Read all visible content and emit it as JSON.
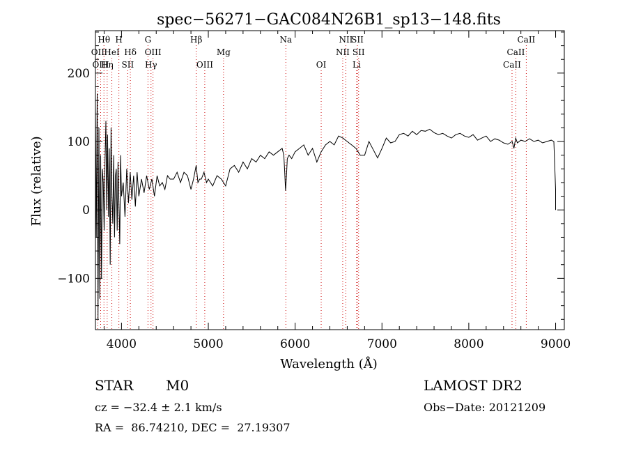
{
  "chart_data": {
    "type": "line",
    "title": "spec−56271−GAC084N26B1_sp13−148.fits",
    "xlabel": "Wavelength (Å)",
    "ylabel": "Flux (relative)",
    "xlim": [
      3700,
      9100
    ],
    "ylim": [
      -175,
      262
    ],
    "xticks": [
      4000,
      5000,
      6000,
      7000,
      8000,
      9000
    ],
    "yticks": [
      -100,
      0,
      100,
      200
    ],
    "xtick_labels": [
      "4000",
      "5000",
      "6000",
      "7000",
      "8000",
      "9000"
    ],
    "ytick_labels": [
      "−100",
      "0",
      "100",
      "200"
    ],
    "grid": false,
    "series": [
      {
        "x": [
          3700,
          3710,
          3720,
          3730,
          3740,
          3750,
          3760,
          3770,
          3780,
          3790,
          3800,
          3810,
          3820,
          3830,
          3840,
          3850,
          3860,
          3870,
          3880,
          3890,
          3900,
          3910,
          3920,
          3930,
          3940,
          3950,
          3960,
          3970,
          3980,
          3990,
          4000,
          4020,
          4040,
          4060,
          4080,
          4100,
          4120,
          4140,
          4160,
          4180,
          4200,
          4230,
          4260,
          4290,
          4320,
          4350,
          4380,
          4410,
          4440,
          4470,
          4500,
          4530,
          4560,
          4600,
          4640,
          4680,
          4720,
          4760,
          4800,
          4830,
          4860,
          4880,
          4900,
          4920,
          4950,
          4980,
          5000,
          5050,
          5100,
          5150,
          5200,
          5250,
          5300,
          5350,
          5400,
          5450,
          5500,
          5550,
          5600,
          5650,
          5700,
          5750,
          5800,
          5850,
          5870,
          5880,
          5890,
          5900,
          5910,
          5930,
          5960,
          6000,
          6050,
          6100,
          6150,
          6200,
          6250,
          6300,
          6350,
          6400,
          6450,
          6500,
          6550,
          6580,
          6600,
          6620,
          6650,
          6700,
          6750,
          6800,
          6850,
          6900,
          6950,
          7000,
          7050,
          7100,
          7150,
          7200,
          7250,
          7300,
          7350,
          7400,
          7450,
          7500,
          7550,
          7600,
          7650,
          7700,
          7750,
          7800,
          7850,
          7900,
          7950,
          8000,
          8050,
          8100,
          8150,
          8200,
          8250,
          8300,
          8350,
          8400,
          8450,
          8500,
          8520,
          8540,
          8560,
          8600,
          8650,
          8700,
          8750,
          8800,
          8850,
          8900,
          8950,
          8980,
          9000,
          9000
        ],
        "y": [
          150,
          -40,
          170,
          -160,
          120,
          -130,
          80,
          -100,
          60,
          40,
          -30,
          70,
          130,
          0,
          110,
          -10,
          90,
          -80,
          120,
          20,
          -20,
          80,
          -40,
          50,
          60,
          -30,
          70,
          10,
          -50,
          80,
          20,
          40,
          -10,
          60,
          10,
          55,
          15,
          50,
          5,
          55,
          20,
          45,
          25,
          50,
          30,
          45,
          20,
          50,
          35,
          40,
          30,
          50,
          45,
          45,
          55,
          40,
          55,
          50,
          30,
          45,
          65,
          40,
          45,
          45,
          55,
          40,
          45,
          35,
          50,
          45,
          35,
          60,
          65,
          55,
          70,
          60,
          75,
          70,
          80,
          75,
          85,
          80,
          85,
          90,
          80,
          55,
          28,
          50,
          75,
          80,
          75,
          85,
          90,
          95,
          80,
          90,
          70,
          85,
          95,
          100,
          95,
          108,
          105,
          102,
          100,
          98,
          95,
          90,
          80,
          80,
          100,
          88,
          76,
          90,
          105,
          98,
          100,
          110,
          112,
          108,
          115,
          110,
          116,
          115,
          118,
          113,
          110,
          112,
          108,
          105,
          110,
          112,
          108,
          106,
          110,
          102,
          105,
          108,
          100,
          104,
          102,
          98,
          96,
          100,
          90,
          105,
          98,
          102,
          100,
          104,
          100,
          102,
          98,
          100,
          102,
          100,
          30,
          0
        ]
      }
    ],
    "lines": [
      {
        "label": "Hθ",
        "x": 3798,
        "row": 0
      },
      {
        "label": "H",
        "x": 3970,
        "row": 0
      },
      {
        "label": "G",
        "x": 4305,
        "row": 0
      },
      {
        "label": "Hβ",
        "x": 4861,
        "row": 0
      },
      {
        "label": "Na",
        "x": 5893,
        "row": 0
      },
      {
        "label": "NII",
        "x": 6584,
        "row": 0
      },
      {
        "label": "SII",
        "x": 6717,
        "row": 0
      },
      {
        "label": "CaII",
        "x": 8662,
        "row": 0
      },
      {
        "label": "OII",
        "x": 3727,
        "row": 1
      },
      {
        "label": "HeI",
        "x": 3889,
        "row": 1
      },
      {
        "label": "Hδ",
        "x": 4102,
        "row": 1
      },
      {
        "label": "OIII",
        "x": 4363,
        "row": 1
      },
      {
        "label": "Mg",
        "x": 5175,
        "row": 1
      },
      {
        "label": "NII",
        "x": 6548,
        "row": 1
      },
      {
        "label": "SII",
        "x": 6731,
        "row": 1
      },
      {
        "label": "CaII",
        "x": 8542,
        "row": 1
      },
      {
        "label": "OIII",
        "x": 3760,
        "row": 2
      },
      {
        "label": "Hη",
        "x": 3835,
        "row": 2
      },
      {
        "label": "SII",
        "x": 4072,
        "row": 2
      },
      {
        "label": "Hγ",
        "x": 4340,
        "row": 2
      },
      {
        "label": "OIII",
        "x": 4959,
        "row": 2
      },
      {
        "label": "OI",
        "x": 6300,
        "row": 2
      },
      {
        "label": "Li",
        "x": 6708,
        "row": 2
      },
      {
        "label": "CaII",
        "x": 8498,
        "row": 2
      }
    ]
  },
  "info": {
    "class_label": "STAR",
    "subclass": "M0",
    "survey": "LAMOST DR2",
    "redshift": "cz = −32.4 ± 2.1 km/s",
    "obs_date": "Obs−Date: 20121209",
    "coords": "RA =  86.74210, DEC =  27.19307"
  }
}
